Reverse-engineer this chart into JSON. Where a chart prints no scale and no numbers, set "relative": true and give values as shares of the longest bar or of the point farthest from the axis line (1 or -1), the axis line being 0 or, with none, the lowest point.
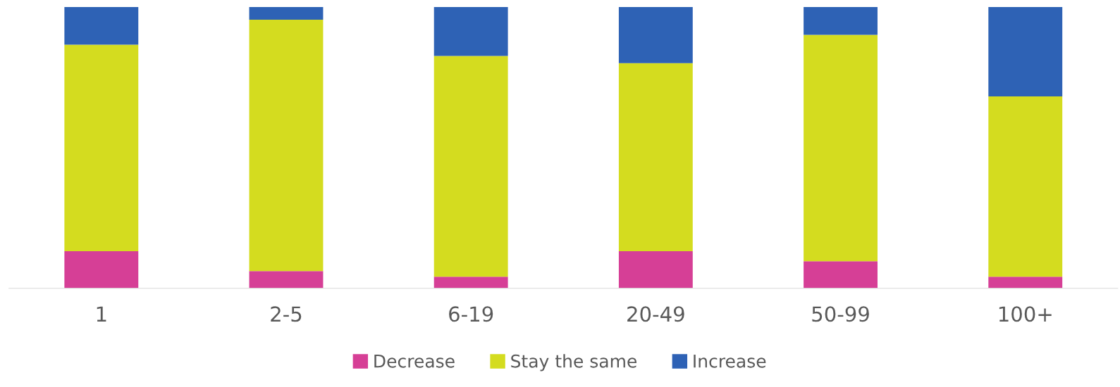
{
  "chart_data": {
    "type": "bar",
    "stacked": true,
    "relative": true,
    "categories": [
      "1",
      "2-5",
      "6-19",
      "20-49",
      "50-99",
      "100+"
    ],
    "series": [
      {
        "name": "Decrease",
        "color": "#d63f96",
        "values": [
          0.132,
          0.061,
          0.041,
          0.132,
          0.096,
          0.041
        ]
      },
      {
        "name": "Stay the same",
        "color": "#d4dc1f",
        "values": [
          0.734,
          0.894,
          0.785,
          0.668,
          0.805,
          0.641
        ]
      },
      {
        "name": "Increase",
        "color": "#2e62b5",
        "values": [
          0.134,
          0.045,
          0.174,
          0.2,
          0.099,
          0.318
        ]
      }
    ],
    "legend": "bottom",
    "grid": false
  }
}
